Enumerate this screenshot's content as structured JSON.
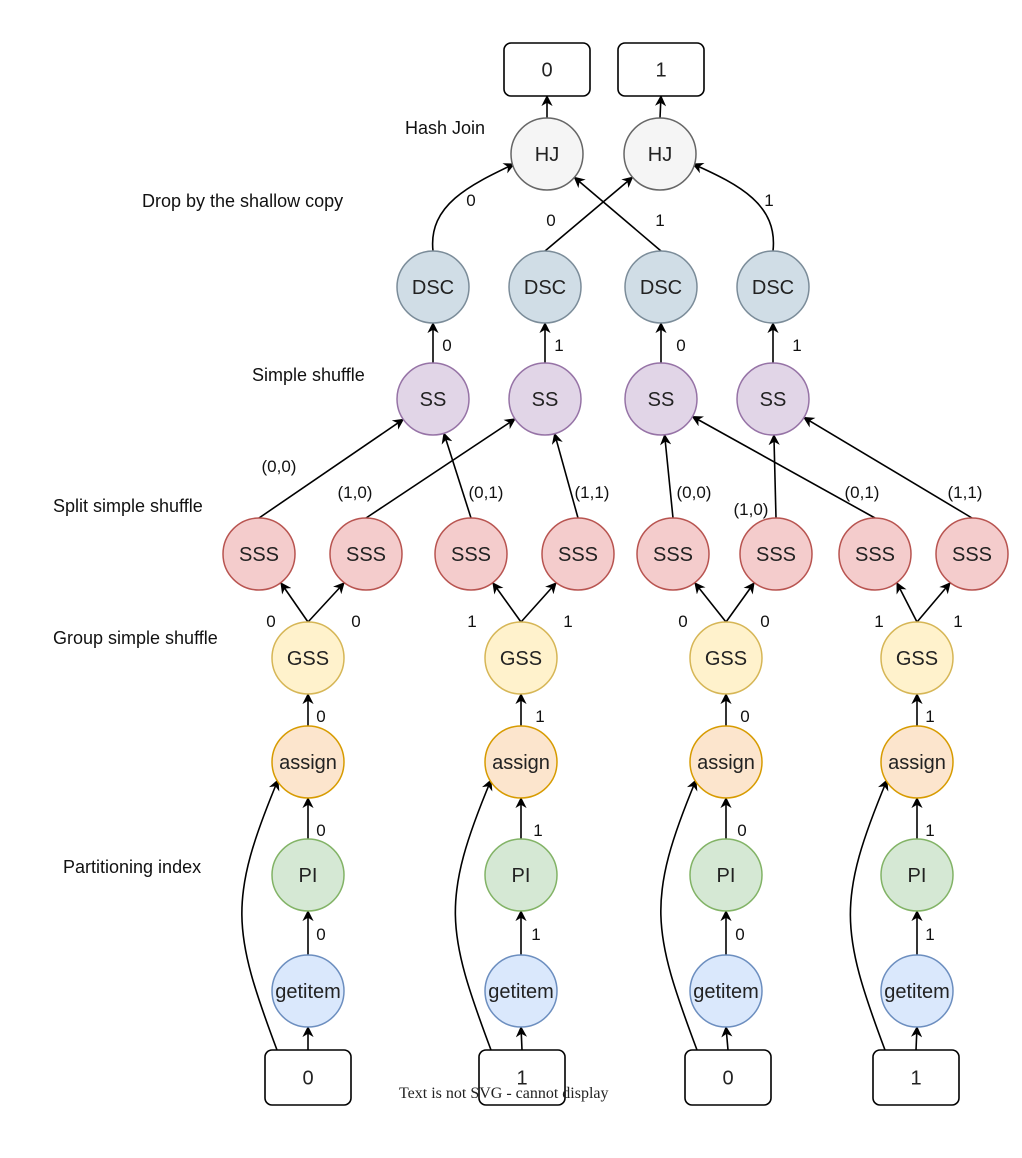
{
  "annotations": {
    "hash_join": "Hash Join",
    "drop_shallow_copy": "Drop by the shallow copy",
    "simple_shuffle": "Simple shuffle",
    "split_simple_shuffle": "Split simple shuffle",
    "group_simple_shuffle": "Group simple shuffle",
    "partitioning_index": "Partitioning index"
  },
  "footer": "Text is not SVG - cannot display",
  "colors": {
    "hj": {
      "fill": "#f5f5f5",
      "stroke": "#666666"
    },
    "dsc": {
      "fill": "#d0dde6",
      "stroke": "#7b8c99"
    },
    "ss": {
      "fill": "#e1d5e7",
      "stroke": "#9673a6"
    },
    "sss": {
      "fill": "#f4cccc",
      "stroke": "#b85450"
    },
    "gss": {
      "fill": "#fff2cc",
      "stroke": "#d6b656"
    },
    "assign": {
      "fill": "#fce5cd",
      "stroke": "#d79b00"
    },
    "pi": {
      "fill": "#d5e8d4",
      "stroke": "#82b366"
    },
    "getitem": {
      "fill": "#dae8fc",
      "stroke": "#6c8ebf"
    },
    "box": {
      "fill": "#ffffff",
      "stroke": "#000000"
    }
  },
  "nodes": {
    "out0": {
      "label": "0",
      "kind": "box"
    },
    "out1": {
      "label": "1",
      "kind": "box"
    },
    "hj0": {
      "label": "HJ",
      "kind": "hj"
    },
    "hj1": {
      "label": "HJ",
      "kind": "hj"
    },
    "dsc0": {
      "label": "DSC",
      "kind": "dsc"
    },
    "dsc1": {
      "label": "DSC",
      "kind": "dsc"
    },
    "dsc2": {
      "label": "DSC",
      "kind": "dsc"
    },
    "dsc3": {
      "label": "DSC",
      "kind": "dsc"
    },
    "ss0": {
      "label": "SS",
      "kind": "ss"
    },
    "ss1": {
      "label": "SS",
      "kind": "ss"
    },
    "ss2": {
      "label": "SS",
      "kind": "ss"
    },
    "ss3": {
      "label": "SS",
      "kind": "ss"
    },
    "sss0": {
      "label": "SSS",
      "kind": "sss"
    },
    "sss1": {
      "label": "SSS",
      "kind": "sss"
    },
    "sss2": {
      "label": "SSS",
      "kind": "sss"
    },
    "sss3": {
      "label": "SSS",
      "kind": "sss"
    },
    "sss4": {
      "label": "SSS",
      "kind": "sss"
    },
    "sss5": {
      "label": "SSS",
      "kind": "sss"
    },
    "sss6": {
      "label": "SSS",
      "kind": "sss"
    },
    "sss7": {
      "label": "SSS",
      "kind": "sss"
    },
    "gss0": {
      "label": "GSS",
      "kind": "gss"
    },
    "gss1": {
      "label": "GSS",
      "kind": "gss"
    },
    "gss2": {
      "label": "GSS",
      "kind": "gss"
    },
    "gss3": {
      "label": "GSS",
      "kind": "gss"
    },
    "asg0": {
      "label": "assign",
      "kind": "assign"
    },
    "asg1": {
      "label": "assign",
      "kind": "assign"
    },
    "asg2": {
      "label": "assign",
      "kind": "assign"
    },
    "asg3": {
      "label": "assign",
      "kind": "assign"
    },
    "pi0": {
      "label": "PI",
      "kind": "pi"
    },
    "pi1": {
      "label": "PI",
      "kind": "pi"
    },
    "pi2": {
      "label": "PI",
      "kind": "pi"
    },
    "pi3": {
      "label": "PI",
      "kind": "pi"
    },
    "gi0": {
      "label": "getitem",
      "kind": "getitem"
    },
    "gi1": {
      "label": "getitem",
      "kind": "getitem"
    },
    "gi2": {
      "label": "getitem",
      "kind": "getitem"
    },
    "gi3": {
      "label": "getitem",
      "kind": "getitem"
    },
    "in0": {
      "label": "0",
      "kind": "box"
    },
    "in1": {
      "label": "1",
      "kind": "box"
    },
    "in2": {
      "label": "0",
      "kind": "box"
    },
    "in3": {
      "label": "1",
      "kind": "box"
    }
  },
  "edge_labels": {
    "hj_left_0": "0",
    "hj_cross_0": "0",
    "hj_cross_1": "1",
    "hj_right_1": "1",
    "ss_dsc_0": "0",
    "ss_dsc_1": "1",
    "ss_dsc_2": "0",
    "ss_dsc_3": "1",
    "sss_ss_0": "(0,0)",
    "sss_ss_1": "(1,0)",
    "sss_ss_2": "(0,1)",
    "sss_ss_3": "(1,1)",
    "sss_ss_4": "(0,0)",
    "sss_ss_5": "(1,0)",
    "sss_ss_6": "(0,1)",
    "sss_ss_7": "(1,1)",
    "gss_sss_0a": "0",
    "gss_sss_0b": "0",
    "gss_sss_1a": "1",
    "gss_sss_1b": "1",
    "gss_sss_2a": "0",
    "gss_sss_2b": "0",
    "gss_sss_3a": "1",
    "gss_sss_3b": "1",
    "asg_gss_0": "0",
    "asg_gss_1": "1",
    "asg_gss_2": "0",
    "asg_gss_3": "1",
    "pi_asg_0": "0",
    "pi_asg_1": "1",
    "pi_asg_2": "0",
    "pi_asg_3": "1",
    "gi_pi_0": "0",
    "gi_pi_1": "1",
    "gi_pi_2": "0",
    "gi_pi_3": "1"
  }
}
